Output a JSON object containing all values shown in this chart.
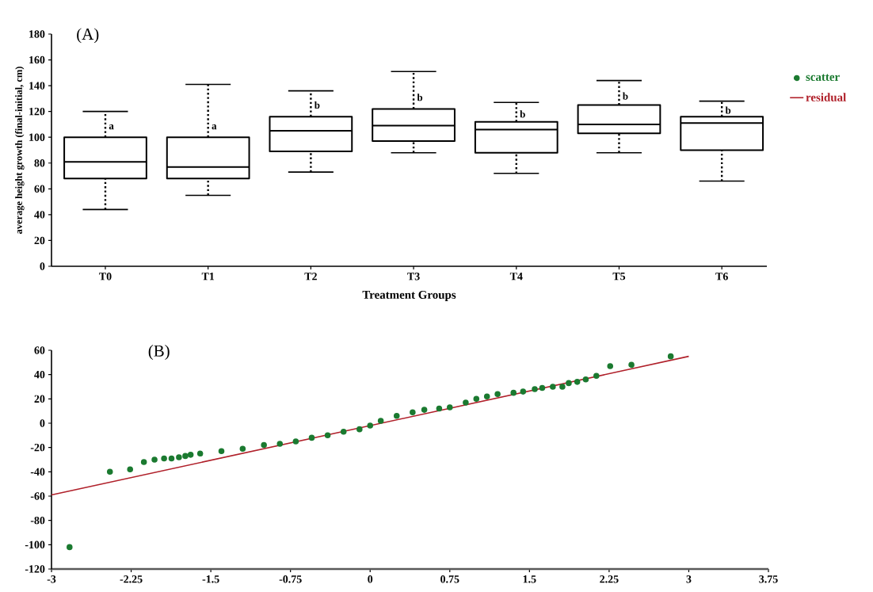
{
  "chart_data": [
    {
      "type": "box",
      "title": "(A)",
      "xlabel": "Treatment Groups",
      "ylabel": "average height growth (final-initial, cm)",
      "categories": [
        "T0",
        "T1",
        "T2",
        "T3",
        "T4",
        "T5",
        "T6"
      ],
      "ylim": [
        0,
        180
      ],
      "yticks": [
        0,
        20,
        40,
        60,
        80,
        100,
        120,
        140,
        160,
        180
      ],
      "boxes": [
        {
          "low": 44,
          "q1": 68,
          "median": 81,
          "q3": 100,
          "high": 120
        },
        {
          "low": 55,
          "q1": 68,
          "median": 77,
          "q3": 100,
          "high": 141
        },
        {
          "low": 73,
          "q1": 89,
          "median": 105,
          "q3": 116,
          "high": 136
        },
        {
          "low": 88,
          "q1": 97,
          "median": 109,
          "q3": 122,
          "high": 151
        },
        {
          "low": 72,
          "q1": 88,
          "median": 106,
          "q3": 112,
          "high": 127
        },
        {
          "low": 88,
          "q1": 103,
          "median": 110,
          "q3": 125,
          "high": 144
        },
        {
          "low": 66,
          "q1": 90,
          "median": 111,
          "q3": 116,
          "high": 128
        }
      ],
      "annotations": [
        {
          "text": "a",
          "x": "T0",
          "y": 108
        },
        {
          "text": "a",
          "x": "T1",
          "y": 108
        },
        {
          "text": "b",
          "x": "T2",
          "y": 125
        },
        {
          "text": "b",
          "x": "T3",
          "y": 131
        },
        {
          "text": "b",
          "x": "T4",
          "y": 118
        },
        {
          "text": "b",
          "x": "T5",
          "y": 132
        },
        {
          "text": "b",
          "x": "T6",
          "y": 121
        }
      ]
    },
    {
      "type": "scatter",
      "title": "(B)",
      "legend": "top right",
      "xlim": [
        -3,
        3.75
      ],
      "xticks": [
        -3,
        -2.25,
        -1.5,
        -0.75,
        0,
        0.75,
        1.5,
        2.25,
        3,
        3.75
      ],
      "ylim": [
        -120,
        60
      ],
      "yticks": [
        -120,
        -100,
        -80,
        -60,
        -40,
        -20,
        0,
        20,
        40,
        60
      ],
      "series": [
        {
          "name": "scatter",
          "marker": "circle",
          "color": "#1b7a30",
          "x": [
            -2.83,
            -2.45,
            -2.26,
            -2.13,
            -2.03,
            -1.94,
            -1.87,
            -1.8,
            -1.74,
            -1.69,
            -1.6,
            -1.4,
            -1.2,
            -1.0,
            -0.85,
            -0.7,
            -0.55,
            -0.4,
            -0.25,
            -0.1,
            0,
            0.1,
            0.25,
            0.4,
            0.51,
            0.65,
            0.75,
            0.9,
            1.0,
            1.1,
            1.2,
            1.35,
            1.44,
            1.55,
            1.62,
            1.72,
            1.81,
            1.87,
            1.95,
            2.03,
            2.13,
            2.26,
            2.46,
            2.83
          ],
          "values": [
            -102,
            -40,
            -38,
            -32,
            -30,
            -29,
            -29,
            -28,
            -27,
            -26,
            -25,
            -23,
            -21,
            -18,
            -17,
            -15,
            -12,
            -10,
            -7,
            -5,
            -2,
            2,
            6,
            9,
            11,
            12,
            13,
            17,
            20,
            22,
            24,
            25,
            26,
            28,
            29,
            30,
            30,
            33,
            34,
            36,
            39,
            47,
            48,
            55
          ]
        },
        {
          "name": "residual",
          "type": "line",
          "marker": "none",
          "color": "#b0202a",
          "x": [
            -3,
            3
          ],
          "values": [
            -59,
            55
          ]
        }
      ]
    }
  ]
}
